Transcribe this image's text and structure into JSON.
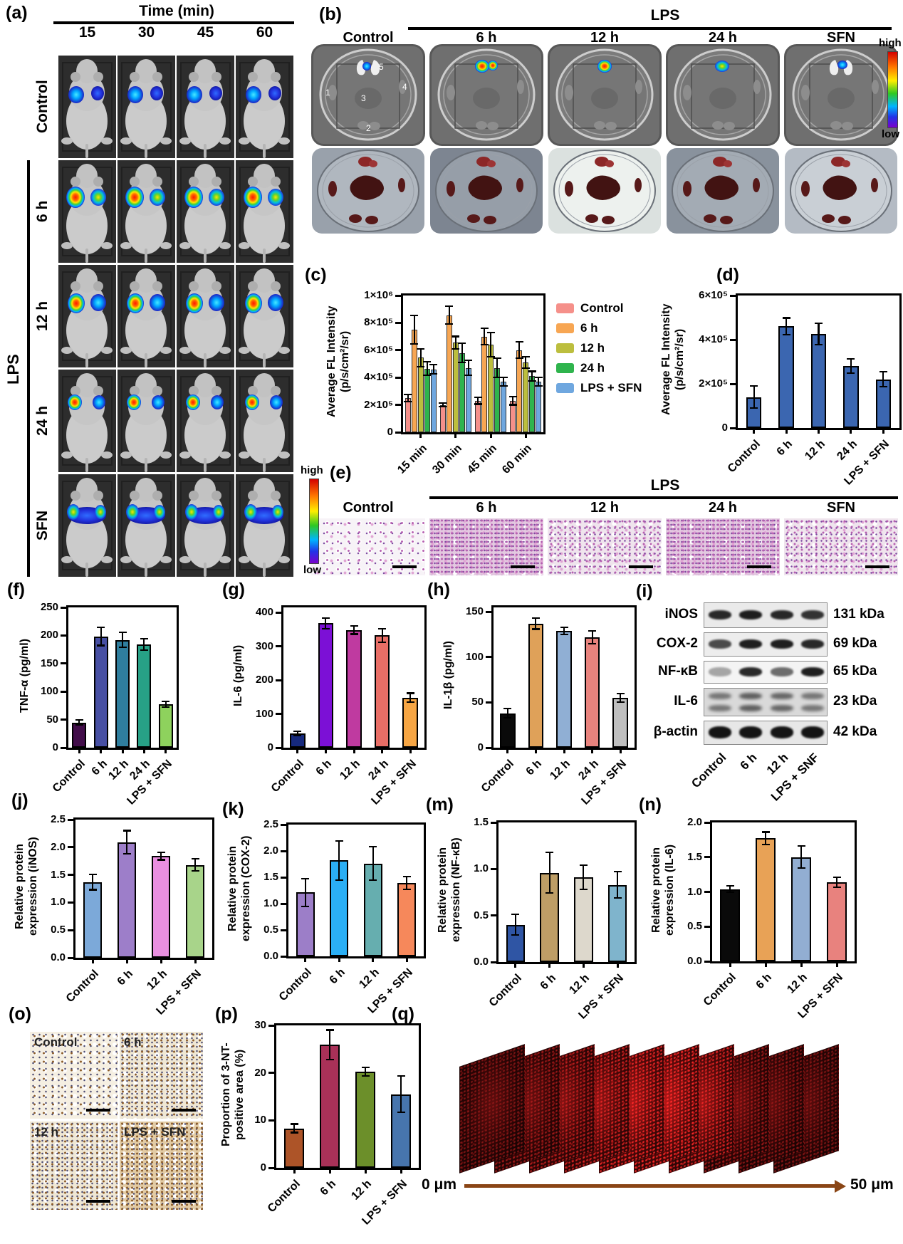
{
  "panels": {
    "a": {
      "label": "(a)",
      "title": "Time (min)",
      "columns": [
        "15",
        "30",
        "45",
        "60"
      ],
      "rows": [
        "Control",
        "6 h",
        "12 h",
        "24 h",
        "SFN"
      ],
      "bracket": "LPS",
      "colorbar_high": "high",
      "colorbar_low": "low"
    },
    "b": {
      "label": "(b)",
      "title": "LPS",
      "columns": [
        "Control",
        "6 h",
        "12 h",
        "24 h",
        "SFN"
      ],
      "dish_numbers": [
        "1",
        "2",
        "3",
        "4",
        "5"
      ],
      "colorbar_high": "high",
      "colorbar_low": "low"
    },
    "c": {
      "label": "(c)"
    },
    "d": {
      "label": "(d)"
    },
    "e": {
      "label": "(e)",
      "title": "LPS",
      "columns": [
        "Control",
        "6 h",
        "12 h",
        "24 h",
        "SFN"
      ]
    },
    "f": {
      "label": "(f)"
    },
    "g": {
      "label": "(g)"
    },
    "h": {
      "label": "(h)"
    },
    "i": {
      "label": "(i)",
      "lanes": [
        "Control",
        "6 h",
        "12 h",
        "LPS + SNF"
      ],
      "rows": [
        {
          "protein": "iNOS",
          "mass": "131 kDa"
        },
        {
          "protein": "COX-2",
          "mass": "69 kDa"
        },
        {
          "protein": "NF-κB",
          "mass": "65 kDa"
        },
        {
          "protein": "IL-6",
          "mass": "23 kDa"
        },
        {
          "protein": "β-actin",
          "mass": "42 kDa"
        }
      ]
    },
    "j": {
      "label": "(j)"
    },
    "k": {
      "label": "(k)"
    },
    "m": {
      "label": "(m)"
    },
    "n": {
      "label": "(n)"
    },
    "o": {
      "label": "(o)",
      "images": [
        "Control",
        "6 h",
        "12 h",
        "LPS + SFN"
      ]
    },
    "p": {
      "label": "(p)"
    },
    "q": {
      "label": "(q)",
      "depth_start": "0 μm",
      "depth_end": "50 μm"
    }
  },
  "chart_data": [
    {
      "panel": "c",
      "type": "bar",
      "grouped": true,
      "ylabel": [
        "Average FL Intensity",
        "(p/s/cm²/sr)"
      ],
      "ylim": [
        0,
        1000000
      ],
      "yticks": [
        {
          "value": 0,
          "label": "0"
        },
        {
          "value": 200000,
          "label": "2×10⁵"
        },
        {
          "value": 400000,
          "label": "4×10⁵"
        },
        {
          "value": 600000,
          "label": "6×10⁵"
        },
        {
          "value": 800000,
          "label": "8×10⁵"
        },
        {
          "value": 1000000,
          "label": "1×10⁶"
        }
      ],
      "categories": [
        "15 min",
        "30 min",
        "45 min",
        "60 min"
      ],
      "series": [
        {
          "name": "Control",
          "color": "#F5908A",
          "values": [
            250000,
            200000,
            230000,
            230000
          ],
          "errors": [
            25000,
            15000,
            25000,
            30000
          ]
        },
        {
          "name": "6 h",
          "color": "#F7A653",
          "values": [
            750000,
            855000,
            700000,
            600000
          ],
          "errors": [
            105000,
            65000,
            60000,
            60000
          ]
        },
        {
          "name": "12 h",
          "color": "#BCBE3E",
          "values": [
            545000,
            655000,
            640000,
            510000
          ],
          "errors": [
            65000,
            45000,
            90000,
            40000
          ]
        },
        {
          "name": "24 h",
          "color": "#2FB44D",
          "values": [
            465000,
            580000,
            470000,
            410000
          ],
          "errors": [
            50000,
            70000,
            70000,
            35000
          ]
        },
        {
          "name": "LPS + SFN",
          "color": "#6FA7DF",
          "values": [
            460000,
            470000,
            370000,
            370000
          ],
          "errors": [
            35000,
            55000,
            30000,
            30000
          ]
        }
      ],
      "legend_position": "right"
    },
    {
      "panel": "d",
      "type": "bar",
      "ylabel": [
        "Average FL Intensity",
        "(p/s/cm²/sr)"
      ],
      "ylim": [
        0,
        600000
      ],
      "yticks": [
        {
          "value": 0,
          "label": "0"
        },
        {
          "value": 200000,
          "label": "2×10⁵"
        },
        {
          "value": 400000,
          "label": "4×10⁵"
        },
        {
          "value": 600000,
          "label": "6×10⁵"
        }
      ],
      "categories": [
        "Control",
        "6 h",
        "12 h",
        "24 h",
        "LPS + SFN"
      ],
      "values": [
        140000,
        460000,
        425000,
        280000,
        220000
      ],
      "errors": [
        50000,
        38000,
        48000,
        33000,
        34000
      ],
      "bar_color": "#3B66B0"
    },
    {
      "panel": "f",
      "type": "bar",
      "ylabel": [
        "TNF-α (pg/ml)"
      ],
      "ylim": [
        0,
        250
      ],
      "yticks": [
        {
          "value": 0,
          "label": "0"
        },
        {
          "value": 50,
          "label": "50"
        },
        {
          "value": 100,
          "label": "100"
        },
        {
          "value": 150,
          "label": "150"
        },
        {
          "value": 200,
          "label": "200"
        },
        {
          "value": 250,
          "label": "250"
        }
      ],
      "categories": [
        "Control",
        "6 h",
        "12 h",
        "24 h",
        "LPS + SFN"
      ],
      "values": [
        45,
        198,
        192,
        184,
        77
      ],
      "errors": [
        4,
        16,
        13,
        10,
        5
      ],
      "bar_colors": [
        "#420D4A",
        "#474FA3",
        "#2F7E9E",
        "#27A186",
        "#8ED25D"
      ]
    },
    {
      "panel": "g",
      "type": "bar",
      "ylabel": [
        "IL-6 (pg/ml)"
      ],
      "ylim": [
        0,
        415
      ],
      "yticks": [
        {
          "value": 0,
          "label": "0"
        },
        {
          "value": 100,
          "label": "100"
        },
        {
          "value": 200,
          "label": "200"
        },
        {
          "value": 300,
          "label": "300"
        },
        {
          "value": 400,
          "label": "400"
        }
      ],
      "categories": [
        "Control",
        "6 h",
        "12 h",
        "24 h",
        "LPS + SFN"
      ],
      "values": [
        42,
        368,
        348,
        332,
        148
      ],
      "errors": [
        6,
        16,
        12,
        20,
        13
      ],
      "bar_colors": [
        "#16297D",
        "#7C10D6",
        "#BF3AA0",
        "#E86E66",
        "#F7A644"
      ]
    },
    {
      "panel": "h",
      "type": "bar",
      "ylabel": [
        "IL-1β (pg/ml)"
      ],
      "ylim": [
        0,
        155
      ],
      "yticks": [
        {
          "value": 0,
          "label": "0"
        },
        {
          "value": 50,
          "label": "50"
        },
        {
          "value": 100,
          "label": "100"
        },
        {
          "value": 150,
          "label": "150"
        }
      ],
      "categories": [
        "Control",
        "6 h",
        "12 h",
        "24 h",
        "LPS + SFN"
      ],
      "values": [
        38,
        137,
        129,
        122,
        55
      ],
      "errors": [
        5,
        6,
        4,
        7,
        5
      ],
      "bar_colors": [
        "#0A0A0A",
        "#DFA159",
        "#90AFD4",
        "#E8837D",
        "#BFBFBF"
      ]
    },
    {
      "panel": "j",
      "type": "bar",
      "ylabel": [
        "Relative protein",
        "expression (iNOS)"
      ],
      "ylim": [
        0,
        2.5
      ],
      "yticks": [
        {
          "value": 0,
          "label": "0.0"
        },
        {
          "value": 0.5,
          "label": "0.5"
        },
        {
          "value": 1,
          "label": "1.0"
        },
        {
          "value": 1.5,
          "label": "1.5"
        },
        {
          "value": 2,
          "label": "2.0"
        },
        {
          "value": 2.5,
          "label": "2.5"
        }
      ],
      "categories": [
        "Control",
        "6 h",
        "12 h",
        "LPS + SFN"
      ],
      "values": [
        1.37,
        2.09,
        1.84,
        1.68
      ],
      "errors": [
        0.14,
        0.21,
        0.07,
        0.11
      ],
      "bar_colors": [
        "#7CA9D9",
        "#9D7EC9",
        "#E98FE0",
        "#A8D48A"
      ]
    },
    {
      "panel": "k",
      "type": "bar",
      "ylabel": [
        "Relative protein",
        "expression (COX-2)"
      ],
      "ylim": [
        0,
        2.5
      ],
      "yticks": [
        {
          "value": 0,
          "label": "0.0"
        },
        {
          "value": 0.5,
          "label": "0.5"
        },
        {
          "value": 1,
          "label": "1.0"
        },
        {
          "value": 1.5,
          "label": "1.5"
        },
        {
          "value": 2,
          "label": "2.0"
        },
        {
          "value": 2.5,
          "label": "2.5"
        }
      ],
      "categories": [
        "Control",
        "6 h",
        "12 h",
        "LPS + SFN"
      ],
      "values": [
        1.21,
        1.82,
        1.76,
        1.39
      ],
      "errors": [
        0.26,
        0.37,
        0.32,
        0.12
      ],
      "bar_colors": [
        "#9C7EC8",
        "#2BAFF5",
        "#66AEAF",
        "#F6885B"
      ]
    },
    {
      "panel": "m",
      "type": "bar",
      "ylabel": [
        "Relative protein",
        "expression (NF-κB)"
      ],
      "ylim": [
        0,
        1.5
      ],
      "yticks": [
        {
          "value": 0,
          "label": "0.0"
        },
        {
          "value": 0.5,
          "label": "0.5"
        },
        {
          "value": 1,
          "label": "1.0"
        },
        {
          "value": 1.5,
          "label": "1.5"
        }
      ],
      "categories": [
        "Control",
        "6 h",
        "12 h",
        "LPS + SFN"
      ],
      "values": [
        0.4,
        0.96,
        0.91,
        0.83
      ],
      "errors": [
        0.11,
        0.22,
        0.13,
        0.14
      ],
      "bar_colors": [
        "#2F55A4",
        "#BE9E66",
        "#DDD8CC",
        "#7FB4CC"
      ]
    },
    {
      "panel": "n",
      "type": "bar",
      "ylabel": [
        "Relative protein",
        "expression (IL-6)"
      ],
      "ylim": [
        0,
        2
      ],
      "yticks": [
        {
          "value": 0,
          "label": "0.0"
        },
        {
          "value": 0.5,
          "label": "0.5"
        },
        {
          "value": 1,
          "label": "1.0"
        },
        {
          "value": 1.5,
          "label": "1.5"
        },
        {
          "value": 2,
          "label": "2.0"
        }
      ],
      "categories": [
        "Control",
        "6 h",
        "12 h",
        "LPS + SFN"
      ],
      "values": [
        1.04,
        1.77,
        1.5,
        1.14
      ],
      "errors": [
        0.05,
        0.09,
        0.16,
        0.07
      ],
      "bar_colors": [
        "#0A0A0A",
        "#E8A256",
        "#92AED2",
        "#E8827E"
      ]
    },
    {
      "panel": "p",
      "type": "bar",
      "ylabel": [
        "Proportion of 3-NT-",
        "positive area (%)"
      ],
      "ylim": [
        0,
        30
      ],
      "yticks": [
        {
          "value": 0,
          "label": "0"
        },
        {
          "value": 10,
          "label": "10"
        },
        {
          "value": 20,
          "label": "20"
        },
        {
          "value": 30,
          "label": "30"
        }
      ],
      "categories": [
        "Control",
        "6 h",
        "12 h",
        "LPS + SFN"
      ],
      "values": [
        8.3,
        25.9,
        20.2,
        15.5
      ],
      "errors": [
        0.9,
        3.1,
        0.9,
        3.8
      ],
      "bar_colors": [
        "#AD5428",
        "#A93158",
        "#6C8F2A",
        "#4775AD"
      ]
    }
  ]
}
